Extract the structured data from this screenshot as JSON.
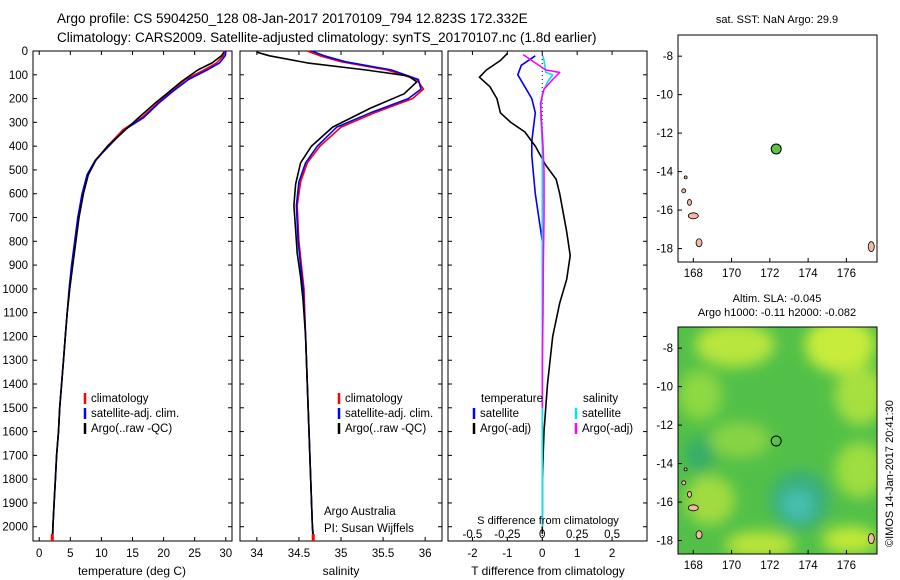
{
  "header": {
    "line1": "Argo profile: CS 5904250_128 08-Jan-2017 20170109_794 12.823S 172.332E",
    "line2": "Climatology: CARS2009. Satellite-adjusted climatology: synTS_20170107.nc (1.8d earlier)"
  },
  "colors": {
    "climatology": "#ff0000",
    "satellite": "#0000ff",
    "argo": "#000000",
    "sat_salinity": "#00e5ee",
    "argo_adj_salinity": "#ff00ff",
    "marker_green": "#5ec24a",
    "land": "#f4b9a4"
  },
  "side_stamp": "©IMOS 14-Jan-2017 20:41:30",
  "chart_data": [
    {
      "type": "line",
      "panel": "temperature",
      "xlabel": "temperature (deg C)",
      "xlim": [
        -1,
        31
      ],
      "xticks": [
        0,
        5,
        10,
        15,
        20,
        25,
        30
      ],
      "ylim": [
        2060,
        0
      ],
      "yticks": [
        0,
        100,
        200,
        300,
        400,
        500,
        600,
        700,
        800,
        900,
        1000,
        1100,
        1200,
        1300,
        1400,
        1500,
        1600,
        1700,
        1800,
        1900,
        2000
      ],
      "legend": [
        "climatology",
        "satellite-adj. clim.",
        "Argo(..raw -QC)"
      ],
      "series": [
        {
          "name": "climatology",
          "color": "#ff0000",
          "points": [
            [
              29.8,
              0
            ],
            [
              29.6,
              20
            ],
            [
              28.5,
              50
            ],
            [
              26.5,
              80
            ],
            [
              23.5,
              120
            ],
            [
              21.2,
              170
            ],
            [
              19.0,
              220
            ],
            [
              16.5,
              280
            ],
            [
              13.5,
              330
            ],
            [
              11.0,
              400
            ],
            [
              9.0,
              460
            ],
            [
              7.8,
              520
            ],
            [
              7.0,
              600
            ],
            [
              6.3,
              700
            ],
            [
              5.8,
              800
            ],
            [
              5.3,
              900
            ],
            [
              4.9,
              1000
            ],
            [
              4.5,
              1100
            ],
            [
              4.2,
              1200
            ],
            [
              3.9,
              1300
            ],
            [
              3.6,
              1400
            ],
            [
              3.3,
              1500
            ],
            [
              3.1,
              1600
            ],
            [
              2.8,
              1700
            ],
            [
              2.6,
              1800
            ],
            [
              2.4,
              1900
            ],
            [
              2.2,
              2000
            ],
            [
              2.1,
              2060
            ]
          ]
        },
        {
          "name": "satellite-adj. clim.",
          "color": "#0000ff",
          "points": [
            [
              30.0,
              0
            ],
            [
              29.9,
              20
            ],
            [
              29.0,
              50
            ],
            [
              27.0,
              80
            ],
            [
              24.0,
              120
            ],
            [
              21.5,
              170
            ],
            [
              19.2,
              220
            ],
            [
              16.8,
              280
            ],
            [
              13.8,
              330
            ],
            [
              11.2,
              400
            ],
            [
              9.0,
              460
            ],
            [
              7.7,
              520
            ],
            [
              6.9,
              600
            ],
            [
              6.2,
              700
            ],
            [
              5.7,
              800
            ],
            [
              5.2,
              900
            ],
            [
              4.8,
              1000
            ],
            [
              4.5,
              1100
            ],
            [
              4.2,
              1200
            ],
            [
              3.9,
              1300
            ],
            [
              3.6,
              1400
            ],
            [
              3.3,
              1500
            ],
            [
              3.1,
              1600
            ],
            [
              2.8,
              1700
            ],
            [
              2.6,
              1800
            ],
            [
              2.4,
              1900
            ],
            [
              2.2,
              2000
            ],
            [
              2.1,
              2060
            ]
          ]
        },
        {
          "name": "Argo(..raw -QC)",
          "color": "#000000",
          "points": [
            [
              29.7,
              5
            ],
            [
              29.3,
              20
            ],
            [
              27.8,
              50
            ],
            [
              25.5,
              80
            ],
            [
              22.8,
              130
            ],
            [
              20.5,
              180
            ],
            [
              18.6,
              220
            ],
            [
              16.0,
              280
            ],
            [
              13.5,
              340
            ],
            [
              11.0,
              400
            ],
            [
              9.1,
              460
            ],
            [
              7.9,
              520
            ],
            [
              7.1,
              600
            ],
            [
              6.4,
              700
            ],
            [
              5.9,
              800
            ],
            [
              5.4,
              900
            ],
            [
              4.9,
              1000
            ],
            [
              4.5,
              1100
            ],
            [
              4.2,
              1200
            ],
            [
              3.9,
              1300
            ],
            [
              3.6,
              1400
            ],
            [
              3.3,
              1500
            ],
            [
              3.1,
              1600
            ],
            [
              2.8,
              1700
            ],
            [
              2.6,
              1800
            ],
            [
              2.4,
              1900
            ],
            [
              2.2,
              2000
            ],
            [
              2.2,
              2030
            ]
          ]
        }
      ]
    },
    {
      "type": "line",
      "panel": "salinity",
      "xlabel": "salinity",
      "xlim": [
        33.8,
        36.2
      ],
      "xticks": [
        34,
        34.5,
        35,
        35.5,
        36
      ],
      "ylim": [
        2060,
        0
      ],
      "legend": [
        "climatology",
        "satellite-adj. clim.",
        "Argo(..raw -QC)"
      ],
      "annotation": [
        "Argo Australia",
        "PI: Susan Wijffels"
      ],
      "series": [
        {
          "name": "climatology",
          "color": "#ff0000",
          "points": [
            [
              34.6,
              0
            ],
            [
              34.75,
              20
            ],
            [
              35.0,
              45
            ],
            [
              35.55,
              80
            ],
            [
              35.9,
              120
            ],
            [
              35.98,
              160
            ],
            [
              35.85,
              200
            ],
            [
              35.4,
              260
            ],
            [
              35.0,
              320
            ],
            [
              34.75,
              400
            ],
            [
              34.6,
              470
            ],
            [
              34.52,
              550
            ],
            [
              34.48,
              650
            ],
            [
              34.5,
              800
            ],
            [
              34.53,
              900
            ],
            [
              34.56,
              1000
            ],
            [
              34.58,
              1200
            ],
            [
              34.6,
              1400
            ],
            [
              34.62,
              1600
            ],
            [
              34.64,
              1800
            ],
            [
              34.66,
              2000
            ],
            [
              34.67,
              2060
            ]
          ]
        },
        {
          "name": "satellite-adj. clim.",
          "color": "#0000ff",
          "points": [
            [
              34.65,
              0
            ],
            [
              34.8,
              20
            ],
            [
              35.05,
              45
            ],
            [
              35.6,
              80
            ],
            [
              35.92,
              120
            ],
            [
              35.95,
              160
            ],
            [
              35.8,
              200
            ],
            [
              35.35,
              260
            ],
            [
              34.95,
              320
            ],
            [
              34.72,
              400
            ],
            [
              34.58,
              470
            ],
            [
              34.5,
              550
            ],
            [
              34.47,
              650
            ],
            [
              34.49,
              800
            ],
            [
              34.52,
              900
            ],
            [
              34.55,
              1000
            ],
            [
              34.58,
              1200
            ],
            [
              34.6,
              1400
            ],
            [
              34.62,
              1600
            ],
            [
              34.64,
              1800
            ],
            [
              34.66,
              2000
            ],
            [
              34.67,
              2060
            ]
          ]
        },
        {
          "name": "Argo(..raw -QC)",
          "color": "#000000",
          "points": [
            [
              34.0,
              5
            ],
            [
              34.15,
              20
            ],
            [
              34.6,
              50
            ],
            [
              35.3,
              80
            ],
            [
              35.8,
              105
            ],
            [
              35.9,
              130
            ],
            [
              35.75,
              180
            ],
            [
              35.35,
              240
            ],
            [
              34.9,
              320
            ],
            [
              34.65,
              400
            ],
            [
              34.52,
              470
            ],
            [
              34.46,
              560
            ],
            [
              34.44,
              650
            ],
            [
              34.46,
              750
            ],
            [
              34.48,
              850
            ],
            [
              34.52,
              950
            ],
            [
              34.55,
              1050
            ],
            [
              34.58,
              1200
            ],
            [
              34.6,
              1400
            ],
            [
              34.62,
              1600
            ],
            [
              34.64,
              1800
            ],
            [
              34.66,
              2000
            ],
            [
              34.67,
              2030
            ]
          ]
        }
      ]
    },
    {
      "type": "line",
      "panel": "difference",
      "xlabel": "T difference from climatology",
      "xlabel_top": "S difference from climatology",
      "xlim": [
        -2.7,
        3.0
      ],
      "xticks_T": [
        -2,
        -1,
        0,
        1,
        2
      ],
      "xticks_S": [
        "-0.5",
        "-0.25",
        "0",
        "0.25",
        "0.5"
      ],
      "ylim": [
        2060,
        0
      ],
      "legend_left_title": "temperature",
      "legend_right_title": "salinity",
      "legend": [
        "satellite",
        "Argo(-adj)",
        "satellite",
        "Argo(-adj)"
      ],
      "series": [
        {
          "name": "T satellite",
          "color": "#0000ff",
          "points": [
            [
              -0.2,
              20
            ],
            [
              -0.6,
              60
            ],
            [
              -0.7,
              100
            ],
            [
              -0.5,
              150
            ],
            [
              -0.3,
              200
            ],
            [
              -0.2,
              260
            ],
            [
              -0.25,
              320
            ],
            [
              -0.3,
              380
            ],
            [
              -0.3,
              440
            ],
            [
              -0.25,
              520
            ],
            [
              -0.2,
              600
            ],
            [
              -0.1,
              700
            ],
            [
              0.0,
              800
            ],
            [
              0.0,
              1000
            ],
            [
              0.0,
              1500
            ],
            [
              0.0,
              2000
            ]
          ]
        },
        {
          "name": "T Argo(-adj)",
          "color": "#000000",
          "points": [
            [
              -1.0,
              10
            ],
            [
              -1.2,
              40
            ],
            [
              -1.6,
              80
            ],
            [
              -1.8,
              110
            ],
            [
              -1.5,
              150
            ],
            [
              -1.3,
              200
            ],
            [
              -1.2,
              260
            ],
            [
              -0.9,
              300
            ],
            [
              -0.5,
              340
            ],
            [
              -0.2,
              400
            ],
            [
              0.1,
              480
            ],
            [
              0.4,
              540
            ],
            [
              0.5,
              600
            ],
            [
              0.6,
              680
            ],
            [
              0.7,
              760
            ],
            [
              0.8,
              860
            ],
            [
              0.7,
              960
            ],
            [
              0.5,
              1060
            ],
            [
              0.3,
              1200
            ],
            [
              0.15,
              1400
            ],
            [
              0.05,
              1600
            ],
            [
              0.0,
              1800
            ],
            [
              0.0,
              2030
            ]
          ]
        },
        {
          "name": "S satellite",
          "color": "#00e5ee",
          "points": [
            [
              0.02,
              20
            ],
            [
              0.05,
              40
            ],
            [
              0.1,
              90
            ],
            [
              0.3,
              100
            ],
            [
              0.15,
              130
            ],
            [
              0.0,
              180
            ],
            [
              -0.05,
              260
            ],
            [
              -0.02,
              340
            ],
            [
              0.0,
              400
            ],
            [
              0.0,
              600
            ],
            [
              0.0,
              1000
            ],
            [
              0.0,
              2000
            ]
          ]
        },
        {
          "name": "S Argo(-adj)",
          "color": "#ff00ff",
          "points": [
            [
              -0.55,
              15
            ],
            [
              -0.3,
              40
            ],
            [
              0.1,
              80
            ],
            [
              0.5,
              90
            ],
            [
              0.3,
              120
            ],
            [
              0.05,
              160
            ],
            [
              -0.05,
              220
            ],
            [
              -0.02,
              300
            ],
            [
              0.02,
              400
            ],
            [
              0.05,
              500
            ],
            [
              0.05,
              700
            ],
            [
              0.03,
              900
            ],
            [
              0.02,
              1100
            ],
            [
              0.0,
              1300
            ],
            [
              0.0,
              1500
            ]
          ]
        }
      ]
    },
    {
      "type": "scatter",
      "panel": "sst_map",
      "title": "sat. SST: NaN  Argo: 29.9",
      "xlim": [
        167.2,
        177.6
      ],
      "ylim": [
        -18.7,
        -6.9
      ],
      "xticks": [
        168,
        170,
        172,
        174,
        176
      ],
      "yticks": [
        -8,
        -10,
        -12,
        -14,
        -16,
        -18
      ],
      "points": [
        {
          "x": 172.332,
          "y": -12.823
        }
      ]
    },
    {
      "type": "heatmap",
      "panel": "sla_map",
      "title_line1": "Altim. SLA: -0.045",
      "title_line2": "Argo h1000: -0.11  h2000: -0.082",
      "xlim": [
        167.2,
        177.6
      ],
      "ylim": [
        -18.7,
        -6.9
      ],
      "xticks": [
        168,
        170,
        172,
        174,
        176
      ],
      "yticks": [
        -8,
        -10,
        -12,
        -14,
        -16,
        -18
      ],
      "points": [
        {
          "x": 172.332,
          "y": -12.823
        }
      ]
    }
  ]
}
